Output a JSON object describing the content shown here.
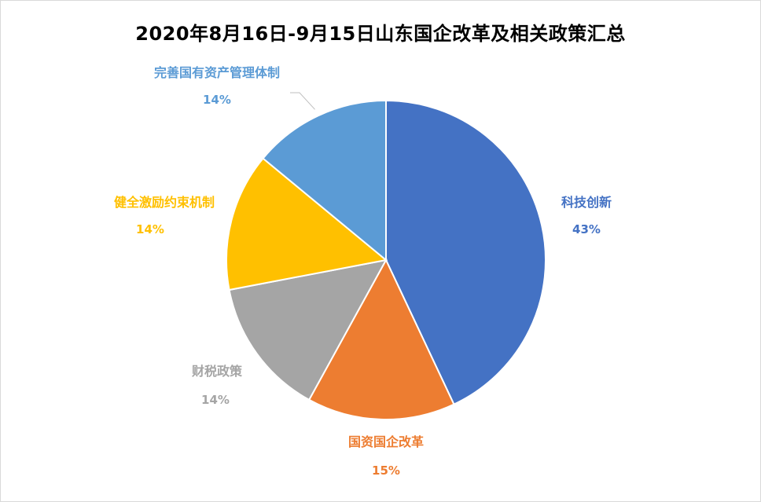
{
  "chart_data": {
    "type": "pie",
    "title": "2020年8月16日-9月15日山东国企改革及相关政策汇总",
    "slices": [
      {
        "name": "科技创新",
        "value": 43,
        "label": "43%",
        "color": "#4472C4"
      },
      {
        "name": "国资国企改革",
        "value": 15,
        "label": "15%",
        "color": "#ED7D31"
      },
      {
        "name": "财税政策",
        "value": 14,
        "label": "14%",
        "color": "#A5A5A5"
      },
      {
        "name": "健全激励约束机制",
        "value": 14,
        "label": "14%",
        "color": "#FFC000"
      },
      {
        "name": "完善国有资产管理体制",
        "value": 14,
        "label": "14%",
        "color": "#5B9BD5"
      }
    ],
    "start_angle_deg": 0,
    "direction": "clockwise",
    "legend": "none"
  }
}
